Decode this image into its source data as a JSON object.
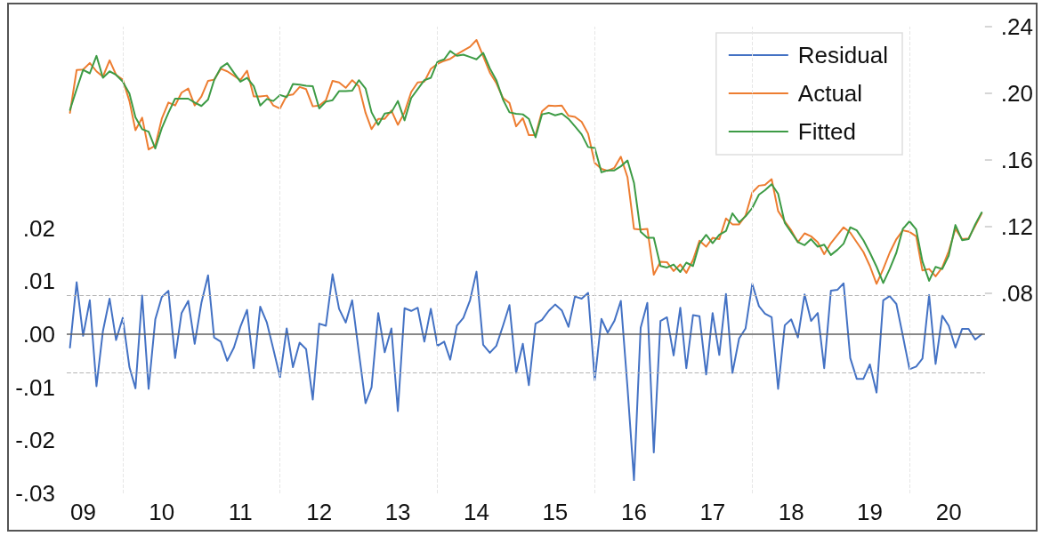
{
  "chart_data": {
    "type": "line",
    "x": [
      "2009-05",
      "2009-06",
      "2009-07",
      "2009-08",
      "2009-09",
      "2009-10",
      "2009-11",
      "2009-12",
      "2010-01",
      "2010-02",
      "2010-03",
      "2010-04",
      "2010-05",
      "2010-06",
      "2010-07",
      "2010-08",
      "2010-09",
      "2010-10",
      "2010-11",
      "2010-12",
      "2011-01",
      "2011-02",
      "2011-03",
      "2011-04",
      "2011-05",
      "2011-06",
      "2011-07",
      "2011-08",
      "2011-09",
      "2011-10",
      "2011-11",
      "2011-12",
      "2012-01",
      "2012-02",
      "2012-03",
      "2012-04",
      "2012-05",
      "2012-06",
      "2012-07",
      "2012-08",
      "2012-09",
      "2012-10",
      "2012-11",
      "2012-12",
      "2013-01",
      "2013-02",
      "2013-03",
      "2013-04",
      "2013-05",
      "2013-06",
      "2013-07",
      "2013-08",
      "2013-09",
      "2013-10",
      "2013-11",
      "2013-12",
      "2014-01",
      "2014-02",
      "2014-03",
      "2014-04",
      "2014-05",
      "2014-06",
      "2014-07",
      "2014-08",
      "2014-09",
      "2014-10",
      "2014-11",
      "2014-12",
      "2015-01",
      "2015-02",
      "2015-03",
      "2015-04",
      "2015-05",
      "2015-06",
      "2015-07",
      "2015-08",
      "2015-09",
      "2015-10",
      "2015-11",
      "2015-12",
      "2016-01",
      "2016-02",
      "2016-03",
      "2016-04",
      "2016-05",
      "2016-06",
      "2016-07",
      "2016-08",
      "2016-09",
      "2016-10",
      "2016-11",
      "2016-12",
      "2017-01",
      "2017-02",
      "2017-03",
      "2017-04",
      "2017-05",
      "2017-06",
      "2017-07",
      "2017-08",
      "2017-09",
      "2017-10",
      "2017-11",
      "2017-12",
      "2018-01",
      "2018-02",
      "2018-03",
      "2018-04",
      "2018-05",
      "2018-06",
      "2018-07",
      "2018-08",
      "2018-09",
      "2018-10",
      "2018-11",
      "2018-12",
      "2019-01",
      "2019-02",
      "2019-03",
      "2019-04",
      "2019-05",
      "2019-06",
      "2019-07",
      "2019-08",
      "2019-09",
      "2019-10",
      "2019-11",
      "2019-12",
      "2020-01",
      "2020-02",
      "2020-03",
      "2020-04",
      "2020-05",
      "2020-06",
      "2020-07",
      "2020-08",
      "2020-09",
      "2020-10",
      "2020-11",
      "2020-12"
    ],
    "series": [
      {
        "name": "Residual",
        "color": "#4472c4",
        "values": [
          -0.0025,
          0.0098,
          -0.0003,
          0.0064,
          -0.0098,
          0.0006,
          0.0067,
          -0.0011,
          0.0031,
          -0.0062,
          -0.0102,
          0.0073,
          -0.0103,
          0.0028,
          0.007,
          0.0082,
          -0.0045,
          0.004,
          0.0063,
          -0.0018,
          0.0059,
          0.0111,
          -0.0006,
          -0.0014,
          -0.005,
          -0.0025,
          0.0014,
          0.0046,
          -0.0064,
          0.0052,
          0.0022,
          -0.0028,
          -0.0081,
          0.0011,
          -0.0062,
          -0.0016,
          -0.0028,
          -0.0123,
          0.002,
          0.0016,
          0.0113,
          0.0048,
          0.0022,
          0.0064,
          -0.0034,
          -0.013,
          -0.01,
          0.004,
          -0.0034,
          0.0011,
          -0.0145,
          0.0049,
          0.0044,
          0.005,
          -0.0014,
          0.0048,
          -0.0022,
          -0.0014,
          -0.0048,
          0.0016,
          0.0031,
          0.0064,
          0.0118,
          -0.002,
          -0.0035,
          -0.0022,
          0.0016,
          0.0055,
          -0.0073,
          -0.0018,
          -0.0096,
          0.002,
          0.0027,
          0.0044,
          0.0056,
          0.0045,
          0.0014,
          0.0071,
          0.0067,
          0.0078,
          -0.0087,
          0.0029,
          0.0003,
          0.0025,
          0.0063,
          -0.0101,
          -0.0275,
          0.0012,
          0.0059,
          -0.0223,
          0.0025,
          0.0032,
          -0.004,
          0.005,
          -0.0064,
          0.0036,
          0.0034,
          -0.0076,
          0.004,
          -0.0039,
          0.0076,
          -0.0073,
          -0.0008,
          0.0011,
          0.0095,
          0.0053,
          0.0039,
          0.0032,
          -0.0103,
          0.0017,
          0.0028,
          -0.0006,
          0.0075,
          0.0025,
          0.004,
          -0.0064,
          0.0082,
          0.0084,
          0.0096,
          -0.0045,
          -0.0084,
          -0.0084,
          -0.0057,
          -0.011,
          0.0064,
          0.0072,
          0.0057,
          -0.0003,
          -0.0066,
          -0.0061,
          -0.0046,
          0.0074,
          -0.0056,
          0.0035,
          0.0016,
          -0.0025,
          0.001,
          0.001,
          -0.001,
          0.0
        ]
      },
      {
        "name": "Actual",
        "color": "#ed7d31",
        "axis": "y2",
        "values": [
          0.1883,
          0.214,
          0.2143,
          0.2182,
          0.2132,
          0.21,
          0.2198,
          0.2111,
          0.2082,
          0.1954,
          0.1779,
          0.1854,
          0.1663,
          0.1686,
          0.1847,
          0.1945,
          0.1927,
          0.2004,
          0.2029,
          0.1927,
          0.1981,
          0.2075,
          0.2082,
          0.2147,
          0.2132,
          0.2106,
          0.2079,
          0.2136,
          0.1981,
          0.1981,
          0.1986,
          0.1927,
          0.1909,
          0.1986,
          0.1993,
          0.2038,
          0.2025,
          0.1922,
          0.1927,
          0.1958,
          0.2075,
          0.2065,
          0.2033,
          0.2079,
          0.2043,
          0.1883,
          0.1785,
          0.1847,
          0.1847,
          0.1897,
          0.1811,
          0.1886,
          0.2008,
          0.2065,
          0.207,
          0.2147,
          0.2177,
          0.2195,
          0.2207,
          0.2234,
          0.2257,
          0.2279,
          0.232,
          0.2223,
          0.2124,
          0.2061,
          0.1972,
          0.1942,
          0.1802,
          0.1851,
          0.1749,
          0.1749,
          0.1892,
          0.1927,
          0.1924,
          0.1927,
          0.1865,
          0.1859,
          0.1829,
          0.1758,
          0.1583,
          0.1547,
          0.1535,
          0.1553,
          0.162,
          0.1496,
          0.1187,
          0.1183,
          0.1187,
          0.0912,
          0.0989,
          0.0987,
          0.0934,
          0.0973,
          0.0923,
          0.1,
          0.1116,
          0.108,
          0.1133,
          0.1125,
          0.1249,
          0.1214,
          0.1214,
          0.1267,
          0.1405,
          0.1446,
          0.1451,
          0.1485,
          0.1294,
          0.1232,
          0.1178,
          0.1107,
          0.116,
          0.1142,
          0.1107,
          0.1035,
          0.1101,
          0.1151,
          0.1196,
          0.1164,
          0.1107,
          0.1048,
          0.0964,
          0.0857,
          0.0946,
          0.1044,
          0.1125,
          0.1178,
          0.1169,
          0.1142,
          0.0937,
          0.0946,
          0.0902,
          0.0955,
          0.1053,
          0.1187,
          0.1125,
          0.113,
          0.1205,
          0.128
        ]
      },
      {
        "name": "Fitted",
        "color": "#3d9b45",
        "axis": "y2",
        "values": [
          0.19,
          0.2025,
          0.2141,
          0.212,
          0.2225,
          0.2093,
          0.2132,
          0.2111,
          0.207,
          0.1999,
          0.1856,
          0.1785,
          0.177,
          0.1669,
          0.179,
          0.1883,
          0.1968,
          0.1968,
          0.1968,
          0.1945,
          0.1924,
          0.1963,
          0.2079,
          0.2154,
          0.2181,
          0.2123,
          0.207,
          0.2093,
          0.2043,
          0.1927,
          0.1966,
          0.1954,
          0.199,
          0.1977,
          0.2056,
          0.2052,
          0.2045,
          0.2043,
          0.1909,
          0.195,
          0.1959,
          0.2013,
          0.2013,
          0.2016,
          0.2079,
          0.2029,
          0.1886,
          0.1811,
          0.1879,
          0.1886,
          0.1954,
          0.1838,
          0.1972,
          0.2025,
          0.2079,
          0.2093,
          0.219,
          0.2204,
          0.2254,
          0.2225,
          0.2232,
          0.2218,
          0.2204,
          0.2243,
          0.215,
          0.2079,
          0.1963,
          0.1886,
          0.1877,
          0.1874,
          0.1847,
          0.1736,
          0.1874,
          0.1883,
          0.1868,
          0.1879,
          0.1847,
          0.1802,
          0.1754,
          0.1678,
          0.1672,
          0.1526,
          0.1538,
          0.1538,
          0.1562,
          0.1597,
          0.1463,
          0.1169,
          0.1133,
          0.1133,
          0.0964,
          0.0955,
          0.0973,
          0.0928,
          0.0984,
          0.0964,
          0.1098,
          0.1151,
          0.1101,
          0.1151,
          0.1174,
          0.128,
          0.1226,
          0.1262,
          0.1312,
          0.1392,
          0.1419,
          0.1455,
          0.1397,
          0.1223,
          0.1165,
          0.1107,
          0.1089,
          0.1125,
          0.108,
          0.1092,
          0.103,
          0.1062,
          0.1098,
          0.1196,
          0.1178,
          0.1119,
          0.1044,
          0.096,
          0.0862,
          0.0946,
          0.1044,
          0.1187,
          0.1232,
          0.1183,
          0.0991,
          0.0875,
          0.0959,
          0.0946,
          0.1026,
          0.121,
          0.1119,
          0.1125,
          0.1214,
          0.1285
        ]
      }
    ],
    "xlim": [
      "2009-04-16",
      "2020-12-16"
    ],
    "xticks": [
      {
        "value": "2009-07",
        "label": "09"
      },
      {
        "value": "2010-07",
        "label": "10"
      },
      {
        "value": "2011-07",
        "label": "11"
      },
      {
        "value": "2012-07",
        "label": "12"
      },
      {
        "value": "2013-07",
        "label": "13"
      },
      {
        "value": "2014-07",
        "label": "14"
      },
      {
        "value": "2015-07",
        "label": "15"
      },
      {
        "value": "2016-07",
        "label": "16"
      },
      {
        "value": "2017-07",
        "label": "17"
      },
      {
        "value": "2018-07",
        "label": "18"
      },
      {
        "value": "2019-07",
        "label": "19"
      },
      {
        "value": "2020-07",
        "label": "20"
      }
    ],
    "ylim": [
      -0.03,
      0.058
    ],
    "yticks": [
      {
        "value": -0.03,
        "label": "-.03"
      },
      {
        "value": -0.02,
        "label": "-.02"
      },
      {
        "value": -0.01,
        "label": "-.01"
      },
      {
        "value": 0,
        "label": ".00"
      },
      {
        "value": 0.01,
        "label": ".01"
      },
      {
        "value": 0.02,
        "label": ".02"
      }
    ],
    "y2lim": [
      -0.04,
      0.24
    ],
    "y2ticks": [
      {
        "value": 0.08,
        "label": ".08"
      },
      {
        "value": 0.12,
        "label": ".12"
      },
      {
        "value": 0.16,
        "label": ".16"
      },
      {
        "value": 0.2,
        "label": ".20"
      },
      {
        "value": 0.24,
        "label": ".24"
      }
    ],
    "ref_lines": [
      {
        "axis": "y",
        "value": 0,
        "color": "#606060"
      },
      {
        "axis": "y",
        "value": 0.0073,
        "color": "#b4b4b4",
        "line_style": "dashed"
      },
      {
        "axis": "y",
        "value": -0.0073,
        "color": "#b4b4b4",
        "line_style": "dashed"
      },
      {
        "axis": "x",
        "value": "2010-01",
        "color": "#e6e6e6",
        "line_style": "dashed"
      },
      {
        "axis": "x",
        "value": "2012-01",
        "color": "#e6e6e6",
        "line_style": "dashed"
      },
      {
        "axis": "x",
        "value": "2014-01",
        "color": "#e6e6e6",
        "line_style": "dashed"
      },
      {
        "axis": "x",
        "value": "2016-01",
        "color": "#e6e6e6",
        "line_style": "dashed"
      },
      {
        "axis": "x",
        "value": "2018-01",
        "color": "#e6e6e6",
        "line_style": "dashed"
      },
      {
        "axis": "x",
        "value": "2020-01",
        "color": "#e6e6e6",
        "line_style": "dashed"
      }
    ],
    "legend": "top right",
    "marker": "none",
    "line_style": "solid"
  }
}
